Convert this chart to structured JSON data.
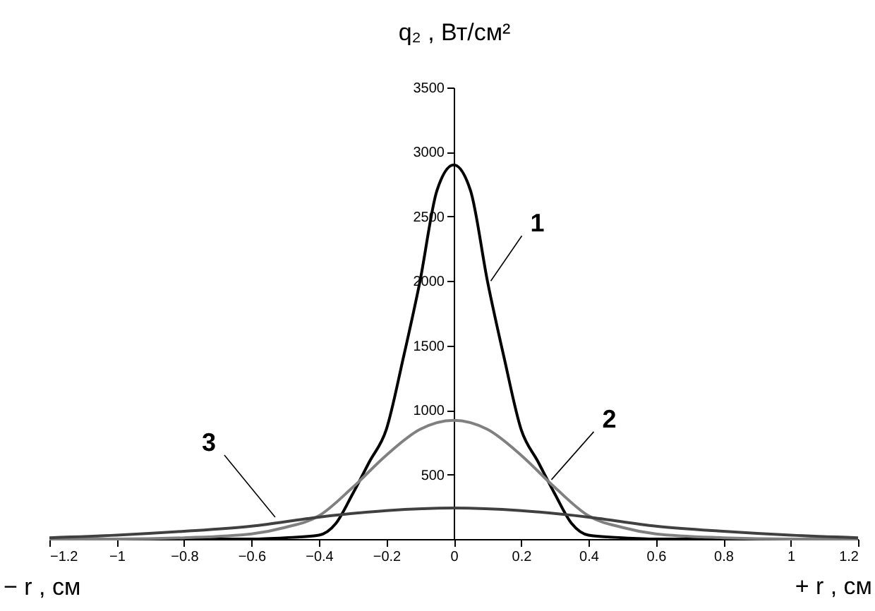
{
  "chart_data": {
    "type": "line",
    "ylabel": "q₂ , Вт/см²",
    "xlabel": "− r , см",
    "xlim": [
      -1.2,
      1.2
    ],
    "xticks": [
      -1.2,
      -1,
      -0.8,
      -0.6,
      -0.4,
      -0.2,
      0,
      0.2,
      0.4,
      0.6,
      0.8,
      1,
      1.2
    ],
    "ylim": [
      0,
      3500
    ],
    "yticks": [
      500,
      1000,
      1500,
      2000,
      2500,
      3000,
      3500
    ],
    "grid": false,
    "marker": "none",
    "line_style": "solid",
    "series": [
      {
        "color": "#000000",
        "x": [
          -1.2,
          -0.6,
          -0.5,
          -0.4,
          -0.35,
          -0.3,
          -0.25,
          -0.2,
          -0.15,
          -0.1,
          -0.05,
          0,
          0.05,
          0.1,
          0.15,
          0.2,
          0.25,
          0.3,
          0.35,
          0.4,
          0.5,
          0.6,
          1.2
        ],
        "values": [
          0,
          0,
          10,
          30,
          120,
          350,
          600,
          850,
          1400,
          2000,
          2700,
          2900,
          2700,
          2000,
          1400,
          850,
          600,
          350,
          120,
          30,
          10,
          0,
          0
        ]
      },
      {
        "color": "#808080",
        "x": [
          -1.2,
          -1,
          -0.8,
          -0.6,
          -0.5,
          -0.4,
          -0.3,
          -0.2,
          -0.1,
          0,
          0.1,
          0.2,
          0.3,
          0.4,
          0.5,
          0.6,
          0.8,
          1,
          1.2
        ],
        "values": [
          0,
          0,
          10,
          40,
          90,
          180,
          400,
          650,
          850,
          920,
          850,
          650,
          400,
          180,
          90,
          40,
          10,
          0,
          0
        ]
      },
      {
        "color": "#404040",
        "x": [
          -1.2,
          -1,
          -0.8,
          -0.6,
          -0.4,
          -0.2,
          0,
          0.2,
          0.4,
          0.6,
          0.8,
          1,
          1.2
        ],
        "values": [
          10,
          30,
          60,
          100,
          170,
          220,
          240,
          220,
          170,
          100,
          60,
          30,
          10
        ]
      }
    ],
    "annotations": [
      {
        "text": "1",
        "x": 0.11,
        "y": 2000
      },
      {
        "text": "2",
        "x": 0.29,
        "y": 460
      },
      {
        "text": "3",
        "x": -0.53,
        "y": 170
      },
      "+ r , см"
    ]
  }
}
